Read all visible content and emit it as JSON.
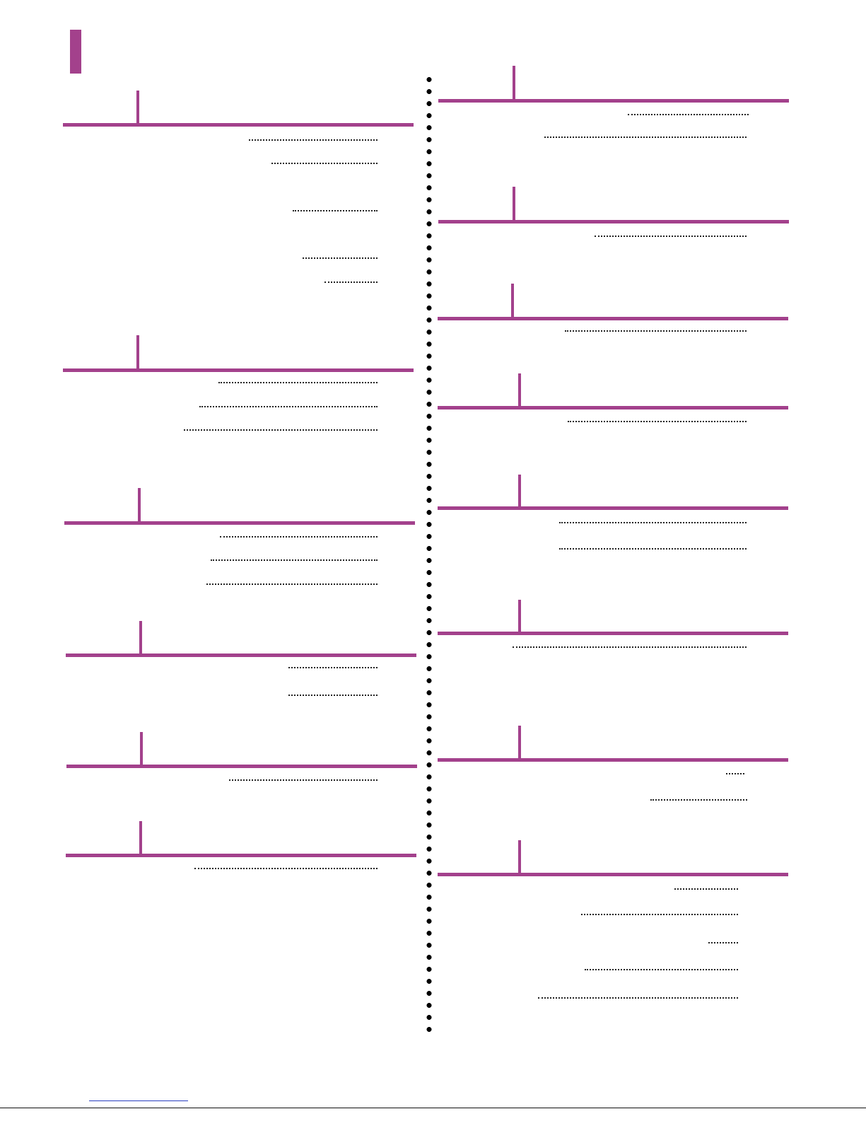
{
  "page": {
    "accent_color": "#a3418c",
    "divider_color": "#000000",
    "leader_color": "#222222",
    "link_color": "#2a3fbf"
  },
  "left_column": {
    "sections": [
      {
        "entries": 5
      },
      {
        "entries": 3
      },
      {
        "entries": 3
      },
      {
        "entries": 2
      },
      {
        "entries": 1
      },
      {
        "entries": 1
      }
    ]
  },
  "right_column": {
    "sections": [
      {
        "entries": 2
      },
      {
        "entries": 1
      },
      {
        "entries": 1
      },
      {
        "entries": 1
      },
      {
        "entries": 2
      },
      {
        "entries": 1
      },
      {
        "entries": 2
      },
      {
        "entries": 5
      }
    ]
  }
}
